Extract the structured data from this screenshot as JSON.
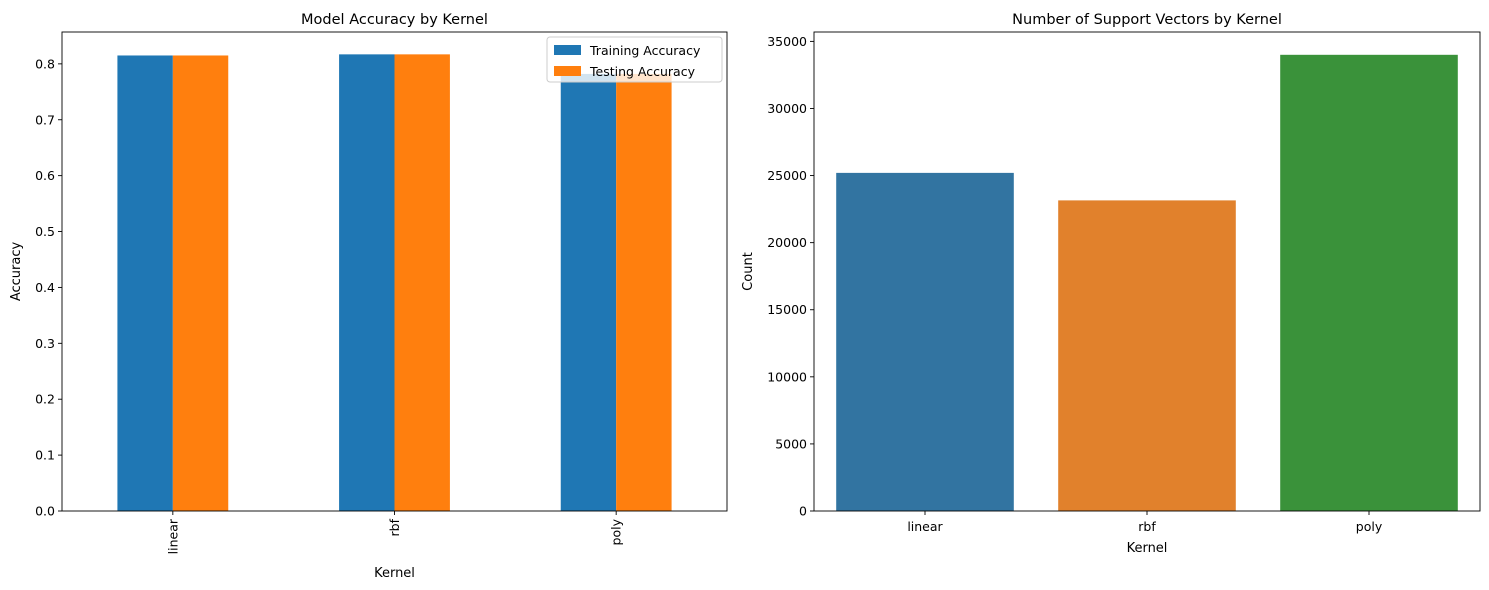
{
  "chart_data": [
    {
      "type": "bar",
      "title": "Model Accuracy by Kernel",
      "xlabel": "Kernel",
      "ylabel": "Accuracy",
      "categories": [
        "linear",
        "rbf",
        "poly"
      ],
      "category_label_rotation": "vertical",
      "series": [
        {
          "name": "Training Accuracy",
          "color": "#1f77b4",
          "values": [
            0.815,
            0.817,
            0.782
          ]
        },
        {
          "name": "Testing Accuracy",
          "color": "#ff7f0e",
          "values": [
            0.815,
            0.817,
            0.782
          ]
        }
      ],
      "ylim": [
        0,
        0.857
      ],
      "yticks": [
        0.0,
        0.1,
        0.2,
        0.3,
        0.4,
        0.5,
        0.6,
        0.7,
        0.8
      ],
      "ytick_labels": [
        "0.0",
        "0.1",
        "0.2",
        "0.3",
        "0.4",
        "0.5",
        "0.6",
        "0.7",
        "0.8"
      ],
      "legend": "top-right",
      "grid": false
    },
    {
      "type": "bar",
      "title": "Number of Support Vectors by Kernel",
      "xlabel": "Kernel",
      "ylabel": "Count",
      "categories": [
        "linear",
        "rbf",
        "poly"
      ],
      "colors": [
        "#3274a1",
        "#e1812c",
        "#3a923a"
      ],
      "values": [
        25200,
        23150,
        34000
      ],
      "ylim": [
        0,
        35700
      ],
      "yticks": [
        0,
        5000,
        10000,
        15000,
        20000,
        25000,
        30000,
        35000
      ],
      "ytick_labels": [
        "0",
        "5000",
        "10000",
        "15000",
        "20000",
        "25000",
        "30000",
        "35000"
      ],
      "grid": false
    }
  ]
}
